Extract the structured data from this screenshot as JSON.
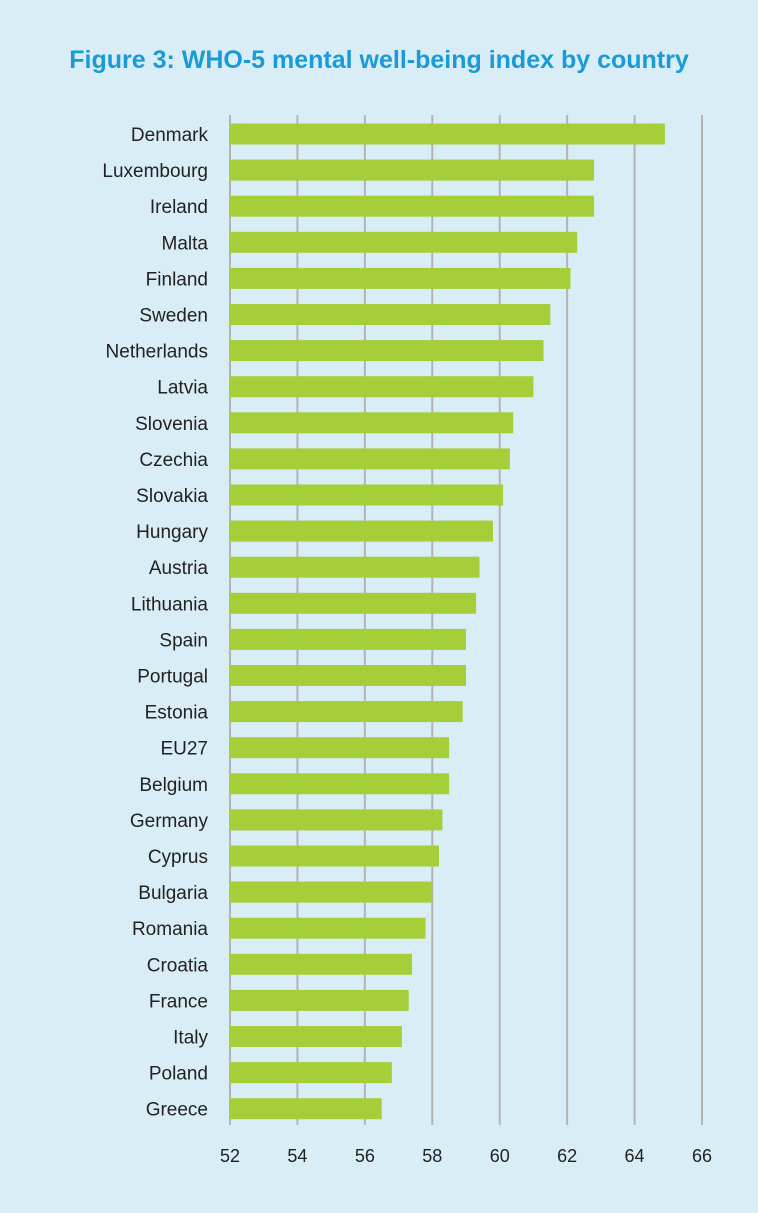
{
  "chart_data": {
    "type": "bar",
    "orientation": "horizontal",
    "title": "Figure 3: WHO-5 mental well-being index by country",
    "xlabel": "",
    "ylabel": "",
    "xlim": [
      52,
      66
    ],
    "xticks": [
      52,
      54,
      56,
      58,
      60,
      62,
      64,
      66
    ],
    "grid": true,
    "bar_color": "#a6ce39",
    "grid_color": "#b3b3b3",
    "categories": [
      "Denmark",
      "Luxembourg",
      "Ireland",
      "Malta",
      "Finland",
      "Sweden",
      "Netherlands",
      "Latvia",
      "Slovenia",
      "Czechia",
      "Slovakia",
      "Hungary",
      "Austria",
      "Lithuania",
      "Spain",
      "Portugal",
      "Estonia",
      "EU27",
      "Belgium",
      "Germany",
      "Cyprus",
      "Bulgaria",
      "Romania",
      "Croatia",
      "France",
      "Italy",
      "Poland",
      "Greece"
    ],
    "values": [
      64.9,
      62.8,
      62.8,
      62.3,
      62.1,
      61.5,
      61.3,
      61.0,
      60.4,
      60.3,
      60.1,
      59.8,
      59.4,
      59.3,
      59.0,
      59.0,
      58.9,
      58.5,
      58.5,
      58.3,
      58.2,
      58.0,
      57.8,
      57.4,
      57.3,
      57.1,
      56.8,
      56.5
    ]
  }
}
